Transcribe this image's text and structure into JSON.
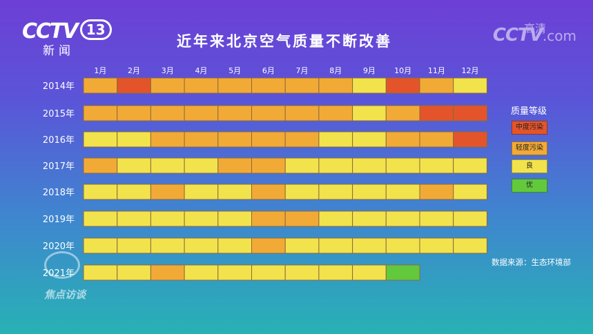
{
  "header": {
    "logo_main": "CCTV",
    "logo_channel": "13",
    "logo_sub": "新闻",
    "logo_right_main": "CCTV",
    "logo_right_com": ".com",
    "logo_right_hd": "高清"
  },
  "watermark_text": "焦点访谈",
  "source": "数据来源：生态环境部",
  "chart_data": {
    "type": "heatmap",
    "title": "近年来北京空气质量不断改善",
    "legend_title": "质量等级",
    "x": [
      "1月",
      "2月",
      "3月",
      "4月",
      "5月",
      "6月",
      "7月",
      "8月",
      "9月",
      "10月",
      "11月",
      "12月"
    ],
    "y": [
      "2014年",
      "2015年",
      "2016年",
      "2017年",
      "2018年",
      "2019年",
      "2020年",
      "2021年"
    ],
    "levels": [
      {
        "code": "M",
        "name": "中度污染",
        "color": "#e4542b"
      },
      {
        "code": "L",
        "name": "轻度污染",
        "color": "#f2aa37"
      },
      {
        "code": "G",
        "name": "良",
        "color": "#f2e34c"
      },
      {
        "code": "E",
        "name": "优",
        "color": "#62c93d"
      }
    ],
    "values": [
      [
        "L",
        "M",
        "L",
        "L",
        "L",
        "L",
        "L",
        "L",
        "G",
        "M",
        "L",
        "G"
      ],
      [
        "L",
        "L",
        "L",
        "L",
        "L",
        "L",
        "L",
        "L",
        "G",
        "L",
        "M",
        "M"
      ],
      [
        "G",
        "G",
        "L",
        "L",
        "L",
        "L",
        "L",
        "G",
        "G",
        "L",
        "L",
        "M"
      ],
      [
        "L",
        "G",
        "G",
        "G",
        "L",
        "L",
        "G",
        "G",
        "G",
        "G",
        "G",
        "G"
      ],
      [
        "G",
        "G",
        "L",
        "G",
        "G",
        "L",
        "G",
        "G",
        "G",
        "G",
        "L",
        "G"
      ],
      [
        "G",
        "G",
        "G",
        "G",
        "G",
        "L",
        "L",
        "G",
        "G",
        "G",
        "G",
        "G"
      ],
      [
        "G",
        "G",
        "G",
        "G",
        "G",
        "L",
        "G",
        "G",
        "G",
        "G",
        "G",
        "G"
      ],
      [
        "G",
        "G",
        "L",
        "G",
        "G",
        "G",
        "G",
        "G",
        "G",
        "E"
      ]
    ]
  }
}
